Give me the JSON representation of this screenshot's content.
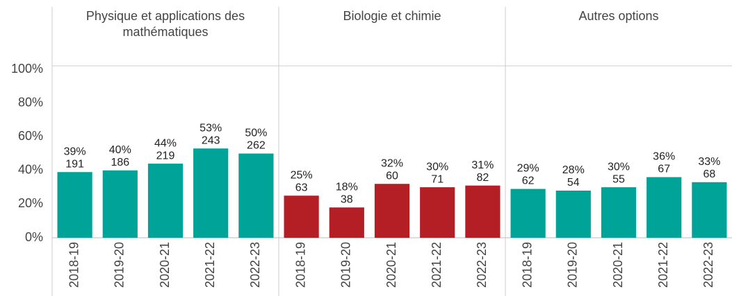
{
  "chart_data": {
    "type": "bar",
    "ylim": [
      0,
      100
    ],
    "yticks": [
      {
        "value": 0,
        "label": "0%"
      },
      {
        "value": 20,
        "label": "20%"
      },
      {
        "value": 40,
        "label": "40%"
      },
      {
        "value": 60,
        "label": "60%"
      },
      {
        "value": 80,
        "label": "80%"
      },
      {
        "value": 100,
        "label": "100%"
      }
    ],
    "panels": [
      {
        "title": "Physique et applications des mathématiques",
        "color": "#00a398",
        "categories": [
          "2018-19",
          "2019-20",
          "2020-21",
          "2021-22",
          "2022-23"
        ],
        "values": [
          39,
          40,
          44,
          53,
          50
        ],
        "value_labels": [
          "39%",
          "40%",
          "44%",
          "53%",
          "50%"
        ],
        "counts": [
          191,
          186,
          219,
          243,
          262
        ]
      },
      {
        "title": "Biologie et chimie",
        "color": "#b31f24",
        "categories": [
          "2018-19",
          "2019-20",
          "2020-21",
          "2021-22",
          "2022-23"
        ],
        "values": [
          25,
          18,
          32,
          30,
          31
        ],
        "value_labels": [
          "25%",
          "18%",
          "32%",
          "30%",
          "31%"
        ],
        "counts": [
          63,
          38,
          60,
          71,
          82
        ]
      },
      {
        "title": "Autres options",
        "color": "#00a398",
        "categories": [
          "2018-19",
          "2019-20",
          "2020-21",
          "2021-22",
          "2022-23"
        ],
        "values": [
          29,
          28,
          30,
          36,
          33
        ],
        "value_labels": [
          "29%",
          "28%",
          "30%",
          "36%",
          "33%"
        ],
        "counts": [
          62,
          54,
          55,
          67,
          68
        ]
      }
    ]
  }
}
